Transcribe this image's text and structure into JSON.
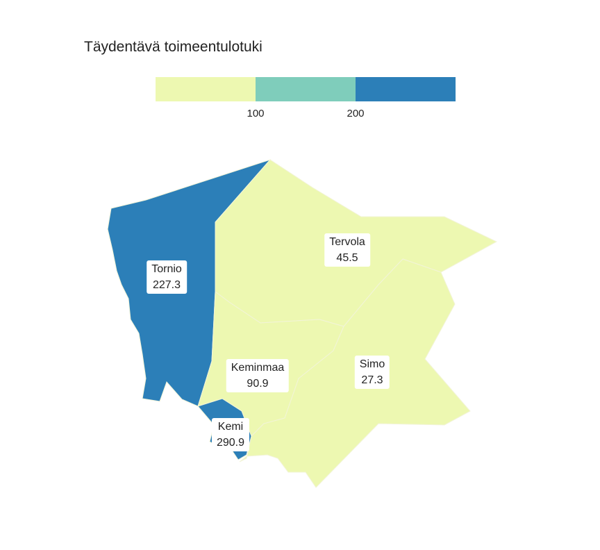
{
  "title": "Täydentävä toimeentulotuki",
  "legend": {
    "bins": [
      {
        "color": "#edf8b1"
      },
      {
        "color": "#7fcdbb"
      },
      {
        "color": "#2c7fb8"
      }
    ],
    "ticks": [
      "100",
      "200"
    ]
  },
  "regions": [
    {
      "name": "Tornio",
      "value": "227.3",
      "color": "#2c7fb8"
    },
    {
      "name": "Tervola",
      "value": "45.5",
      "color": "#edf8b1"
    },
    {
      "name": "Keminmaa",
      "value": "90.9",
      "color": "#edf8b1"
    },
    {
      "name": "Simo",
      "value": "27.3",
      "color": "#edf8b1"
    },
    {
      "name": "Kemi",
      "value": "290.9",
      "color": "#2c7fb8"
    }
  ]
}
